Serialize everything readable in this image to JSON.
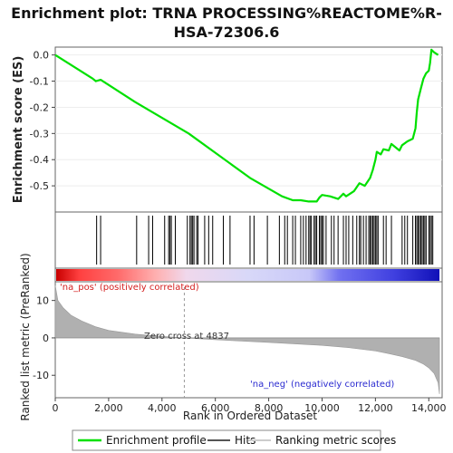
{
  "chart_data": {
    "type": "line",
    "title": "Enrichment plot: TRNA PROCESSING%REACTOME%R-HSA-72306.6",
    "ylabel_top": "Enrichment score (ES)",
    "ylabel_bottom": "Ranked list metric (PreRanked)",
    "xlabel": "Rank in Ordered Dataset",
    "xlim": [
      0,
      14500
    ],
    "es_ylim": [
      -0.6,
      0.03
    ],
    "es_yticks": [
      "0.0",
      "-0.1",
      "-0.2",
      "-0.3",
      "-0.4",
      "-0.5"
    ],
    "es_ytick_values": [
      0.0,
      -0.1,
      -0.2,
      -0.3,
      -0.4,
      -0.5
    ],
    "metric_ylim": [
      -16,
      15
    ],
    "metric_yticks": [
      "10",
      "0",
      "-10"
    ],
    "metric_ytick_values": [
      10,
      0,
      -10
    ],
    "xticks": [
      "0",
      "2,000",
      "4,000",
      "6,000",
      "8,000",
      "10,000",
      "12,000",
      "14,000"
    ],
    "xtick_values": [
      0,
      2000,
      4000,
      6000,
      8000,
      10000,
      12000,
      14000
    ],
    "enrichment_profile": {
      "x": [
        0,
        1400,
        1520,
        1700,
        3000,
        5000,
        7300,
        8500,
        8900,
        9200,
        9500,
        9800,
        9900,
        10000,
        10300,
        10600,
        10800,
        10900,
        11200,
        11400,
        11600,
        11800,
        11900,
        12000,
        12050,
        12200,
        12300,
        12500,
        12600,
        12900,
        13000,
        13200,
        13400,
        13500,
        13550,
        13600,
        13700,
        13800,
        13900,
        14000,
        14050,
        14100,
        14200,
        14350
      ],
      "y": [
        0.0,
        -0.09,
        -0.1,
        -0.095,
        -0.18,
        -0.3,
        -0.47,
        -0.54,
        -0.555,
        -0.555,
        -0.56,
        -0.56,
        -0.545,
        -0.535,
        -0.54,
        -0.55,
        -0.53,
        -0.54,
        -0.52,
        -0.49,
        -0.5,
        -0.47,
        -0.44,
        -0.4,
        -0.37,
        -0.38,
        -0.36,
        -0.365,
        -0.34,
        -0.365,
        -0.345,
        -0.33,
        -0.32,
        -0.28,
        -0.22,
        -0.17,
        -0.13,
        -0.09,
        -0.07,
        -0.06,
        -0.03,
        0.02,
        0.01,
        0.0
      ]
    },
    "hit_positions": [
      1550,
      1700,
      3050,
      3500,
      3650,
      4100,
      4250,
      4300,
      4350,
      4500,
      4950,
      5050,
      5100,
      5150,
      5200,
      5300,
      5350,
      5600,
      5750,
      5900,
      6300,
      6550,
      7300,
      7450,
      7950,
      8400,
      8600,
      8700,
      8900,
      9000,
      9200,
      9300,
      9400,
      9500,
      9550,
      9600,
      9700,
      9750,
      9800,
      9900,
      9950,
      10000,
      10050,
      10150,
      10350,
      10450,
      10600,
      10800,
      10900,
      11000,
      11150,
      11300,
      11400,
      11450,
      11550,
      11650,
      11750,
      11800,
      11850,
      11900,
      11950,
      12000,
      12050,
      12100,
      12300,
      12400,
      12600,
      13000,
      13100,
      13200,
      13400,
      13500,
      13550,
      13600,
      13650,
      13700,
      13750,
      13800,
      13850,
      13900,
      14000,
      14050,
      14100,
      14150
    ],
    "metric_curve": {
      "x": [
        0,
        100,
        300,
        600,
        1000,
        1500,
        2000,
        3000,
        4000,
        4837,
        6000,
        8000,
        10000,
        11000,
        12000,
        12500,
        13000,
        13500,
        13800,
        14000,
        14200,
        14350,
        14400
      ],
      "y": [
        14,
        10,
        8,
        6,
        4.5,
        3,
        2,
        1,
        0.4,
        0,
        -0.5,
        -1.2,
        -2,
        -2.6,
        -3.5,
        -4.2,
        -5,
        -6,
        -7,
        -8,
        -9.5,
        -12,
        -15
      ]
    },
    "ranked_list_end": 14400,
    "zero_cross_rank": 4837,
    "zero_cross_label": "Zero cross at 4837",
    "pos_label": "'na_pos' (positively correlated)",
    "neg_label": "'na_neg' (negatively correlated)",
    "legend": [
      "Enrichment profile",
      "Hits",
      "Ranking metric scores"
    ],
    "colors": {
      "profile": "#00e000",
      "hits": "#000000",
      "metric_fill": "#b0b0b0",
      "pos_label": "#d42020",
      "neg_label": "#2a2ad0",
      "zero_line": "#999999"
    }
  }
}
